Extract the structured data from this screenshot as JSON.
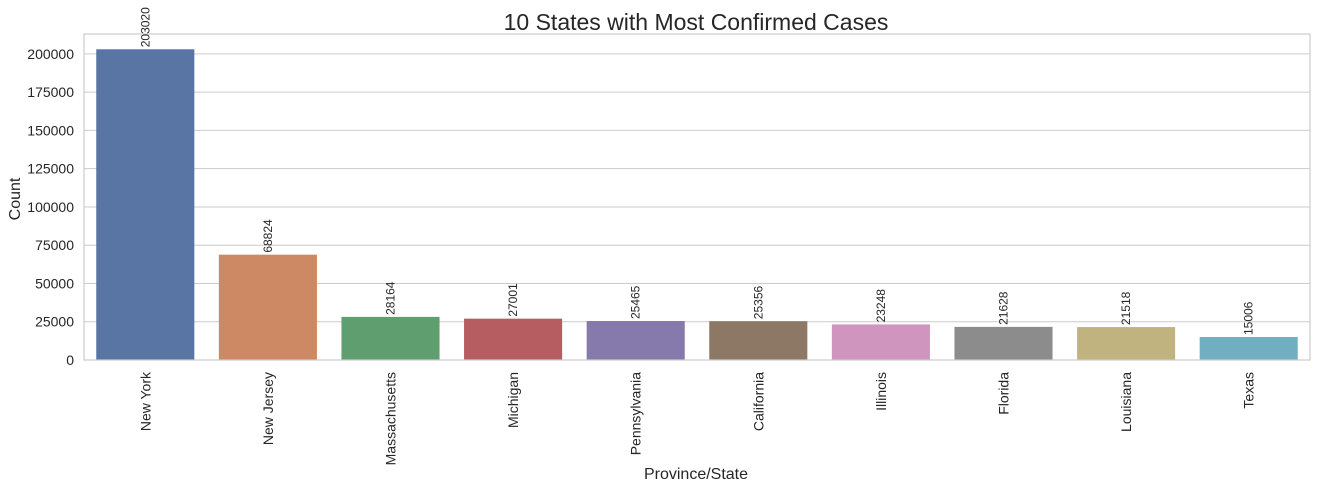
{
  "chart_data": {
    "type": "bar",
    "title": "10 States with Most Confirmed Cases",
    "xlabel": "Province/State",
    "ylabel": "Count",
    "categories": [
      "New York",
      "New Jersey",
      "Massachusetts",
      "Michigan",
      "Pennsylvania",
      "California",
      "Illinois",
      "Florida",
      "Louisiana",
      "Texas"
    ],
    "values": [
      203020,
      68824,
      28164,
      27001,
      25465,
      25356,
      23248,
      21628,
      21518,
      15006
    ],
    "colors": [
      "#5875a4",
      "#cc8963",
      "#5f9e6e",
      "#b55d60",
      "#857aab",
      "#8d7866",
      "#d095bf",
      "#8c8c8c",
      "#c1b37f",
      "#71aec0"
    ],
    "ylim": [
      0,
      213000
    ],
    "yticks": [
      0,
      25000,
      50000,
      75000,
      100000,
      125000,
      150000,
      175000,
      200000
    ],
    "grid": "horizontal",
    "data_labels": true,
    "x_tick_rotation": -90,
    "data_label_rotation": -90
  }
}
